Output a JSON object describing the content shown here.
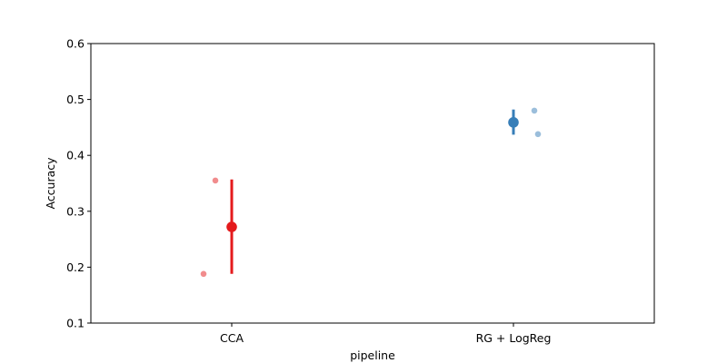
{
  "chart_data": {
    "type": "scatter",
    "title": "",
    "xlabel": "pipeline",
    "ylabel": "Accuracy",
    "ylim": [
      0.1,
      0.6
    ],
    "yticks": [
      "0.1",
      "0.2",
      "0.3",
      "0.4",
      "0.5",
      "0.6"
    ],
    "categories": [
      "CCA",
      "RG + LogReg"
    ],
    "grid": false,
    "legend": "none",
    "series": [
      {
        "category": "CCA",
        "color": "#e41a1c",
        "points": [
          0.355,
          0.188
        ],
        "mean": 0.272,
        "ci": [
          0.188,
          0.357
        ]
      },
      {
        "category": "RG + LogReg",
        "color": "#377eb8",
        "points": [
          0.48,
          0.438
        ],
        "mean": 0.459,
        "ci": [
          0.437,
          0.482
        ]
      }
    ]
  }
}
